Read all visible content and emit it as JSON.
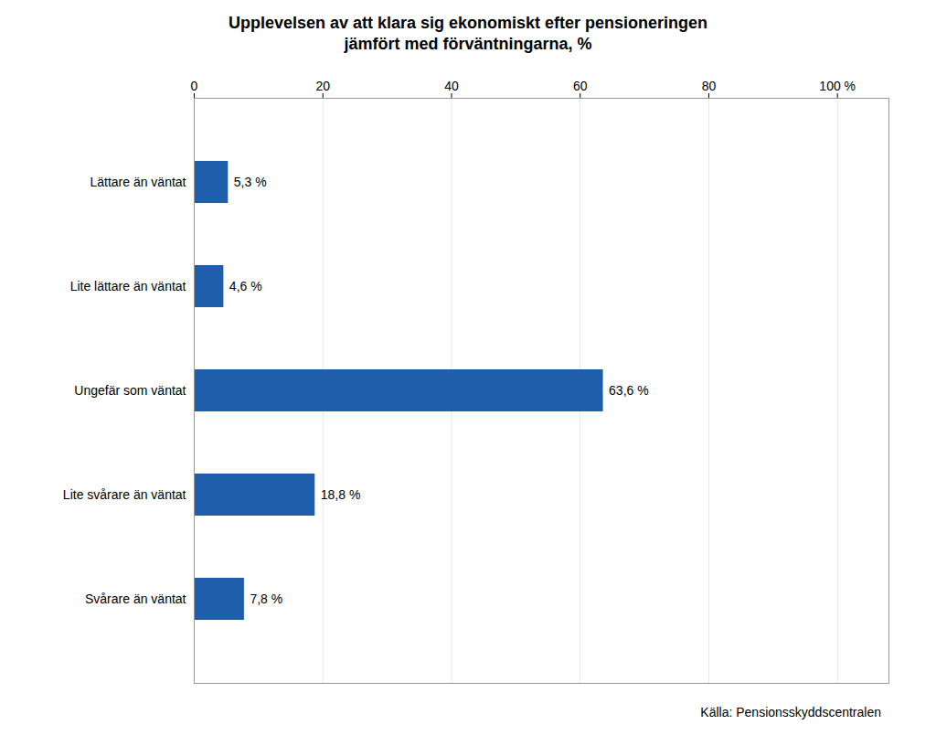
{
  "chart_data": {
    "type": "bar",
    "orientation": "horizontal",
    "title": "Upplevelsen av att klara sig ekonomiskt efter pensioneringen\njämfört med förväntningarna, %",
    "categories": [
      "Svårare än väntat",
      "Lite svårare än väntat",
      "Ungefär som väntat",
      "Lite lättare än väntat",
      "Lättare än väntat"
    ],
    "values": [
      7.8,
      18.8,
      63.6,
      4.6,
      5.3
    ],
    "value_labels": [
      "7,8 %",
      "18,8 %",
      "63,6 %",
      "4,6 %",
      "5,3 %"
    ],
    "data_labels": true,
    "color": "#1F5EAA",
    "xlim": [
      0,
      108
    ],
    "xticks": [
      0,
      20,
      40,
      60,
      80,
      {
        "value": 100,
        "label": "100 %"
      }
    ],
    "grid": true,
    "source": "Källa: Pensionsskyddscentralen"
  }
}
